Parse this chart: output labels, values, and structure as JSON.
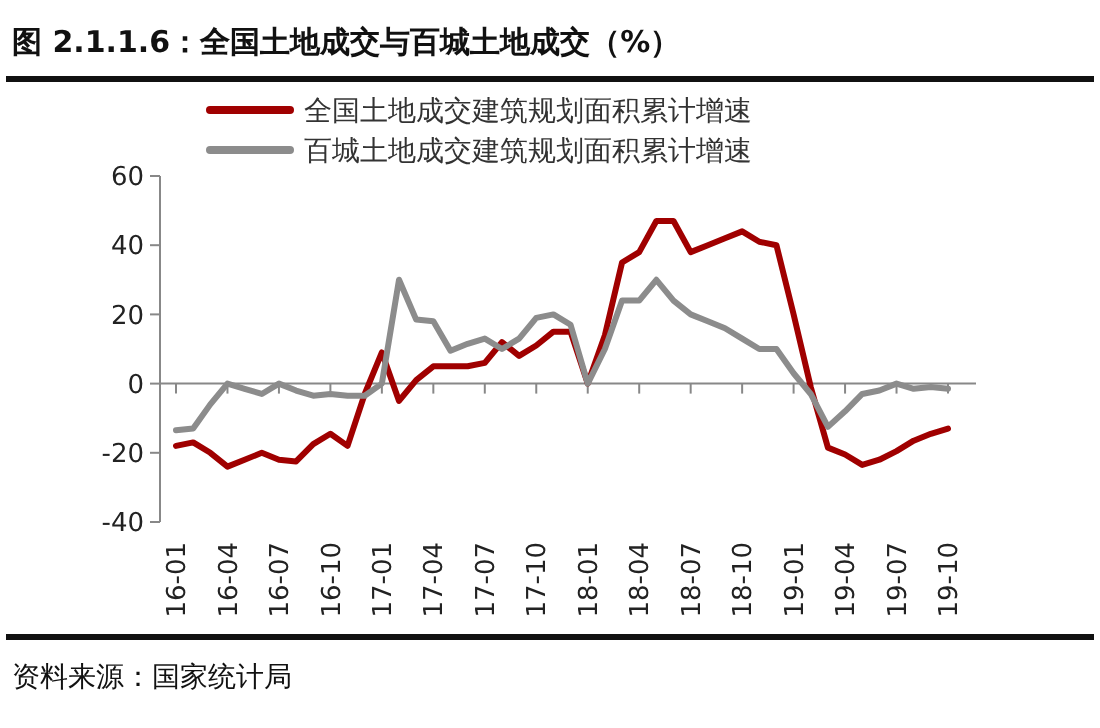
{
  "chart_data": {
    "type": "line",
    "title": "图 2.1.1.6：全国土地成交与百城土地成交（%）",
    "categories": [
      "16-01",
      null,
      null,
      "16-04",
      null,
      null,
      "16-07",
      null,
      null,
      "16-10",
      null,
      null,
      "17-01",
      null,
      null,
      "17-04",
      null,
      null,
      "17-07",
      null,
      null,
      "17-10",
      null,
      null,
      "18-01",
      null,
      null,
      "18-04",
      null,
      null,
      "18-07",
      null,
      null,
      "18-10",
      null,
      null,
      "19-01",
      null,
      null,
      "19-04",
      null,
      null,
      "19-07",
      null,
      null,
      "19-10"
    ],
    "series": [
      {
        "name": "全国土地成交建筑规划面积累计增速",
        "color": "#a00000",
        "values": [
          -18,
          -17,
          -20,
          -24,
          -22,
          -20,
          -22,
          -22.5,
          -17.5,
          -14.5,
          -18,
          -3,
          9,
          -5,
          1,
          5,
          5,
          5,
          6,
          12,
          8,
          11,
          15,
          15,
          0,
          14,
          35,
          38,
          47,
          47,
          38,
          40,
          42,
          44,
          41,
          40,
          20,
          -1,
          -18.5,
          -20.5,
          -23.5,
          -22,
          -19.5,
          -16.5,
          -14.5,
          -13
        ]
      },
      {
        "name": "百城土地成交建筑规划面积累计增速",
        "color": "#8c8c8c",
        "values": [
          -13.5,
          -13,
          -6,
          0,
          -1.5,
          -3,
          0,
          -2,
          -3.5,
          -3,
          -3.5,
          -3.5,
          0,
          30,
          18.5,
          18,
          9.5,
          11.5,
          13,
          10,
          13,
          19,
          20,
          17,
          0,
          10,
          24,
          24,
          30,
          24,
          20,
          18,
          16,
          13,
          10,
          10,
          3,
          -3,
          -12.5,
          -8,
          -3,
          -2,
          0,
          -1.5,
          -1,
          -1.5
        ]
      }
    ],
    "ylim": [
      -40,
      60
    ],
    "yticks": [
      -40,
      -20,
      0,
      20,
      40,
      60
    ],
    "legend": "top",
    "marker": "none",
    "line_style": "solid",
    "annotations": [
      "资料来源：国家统计局"
    ]
  }
}
